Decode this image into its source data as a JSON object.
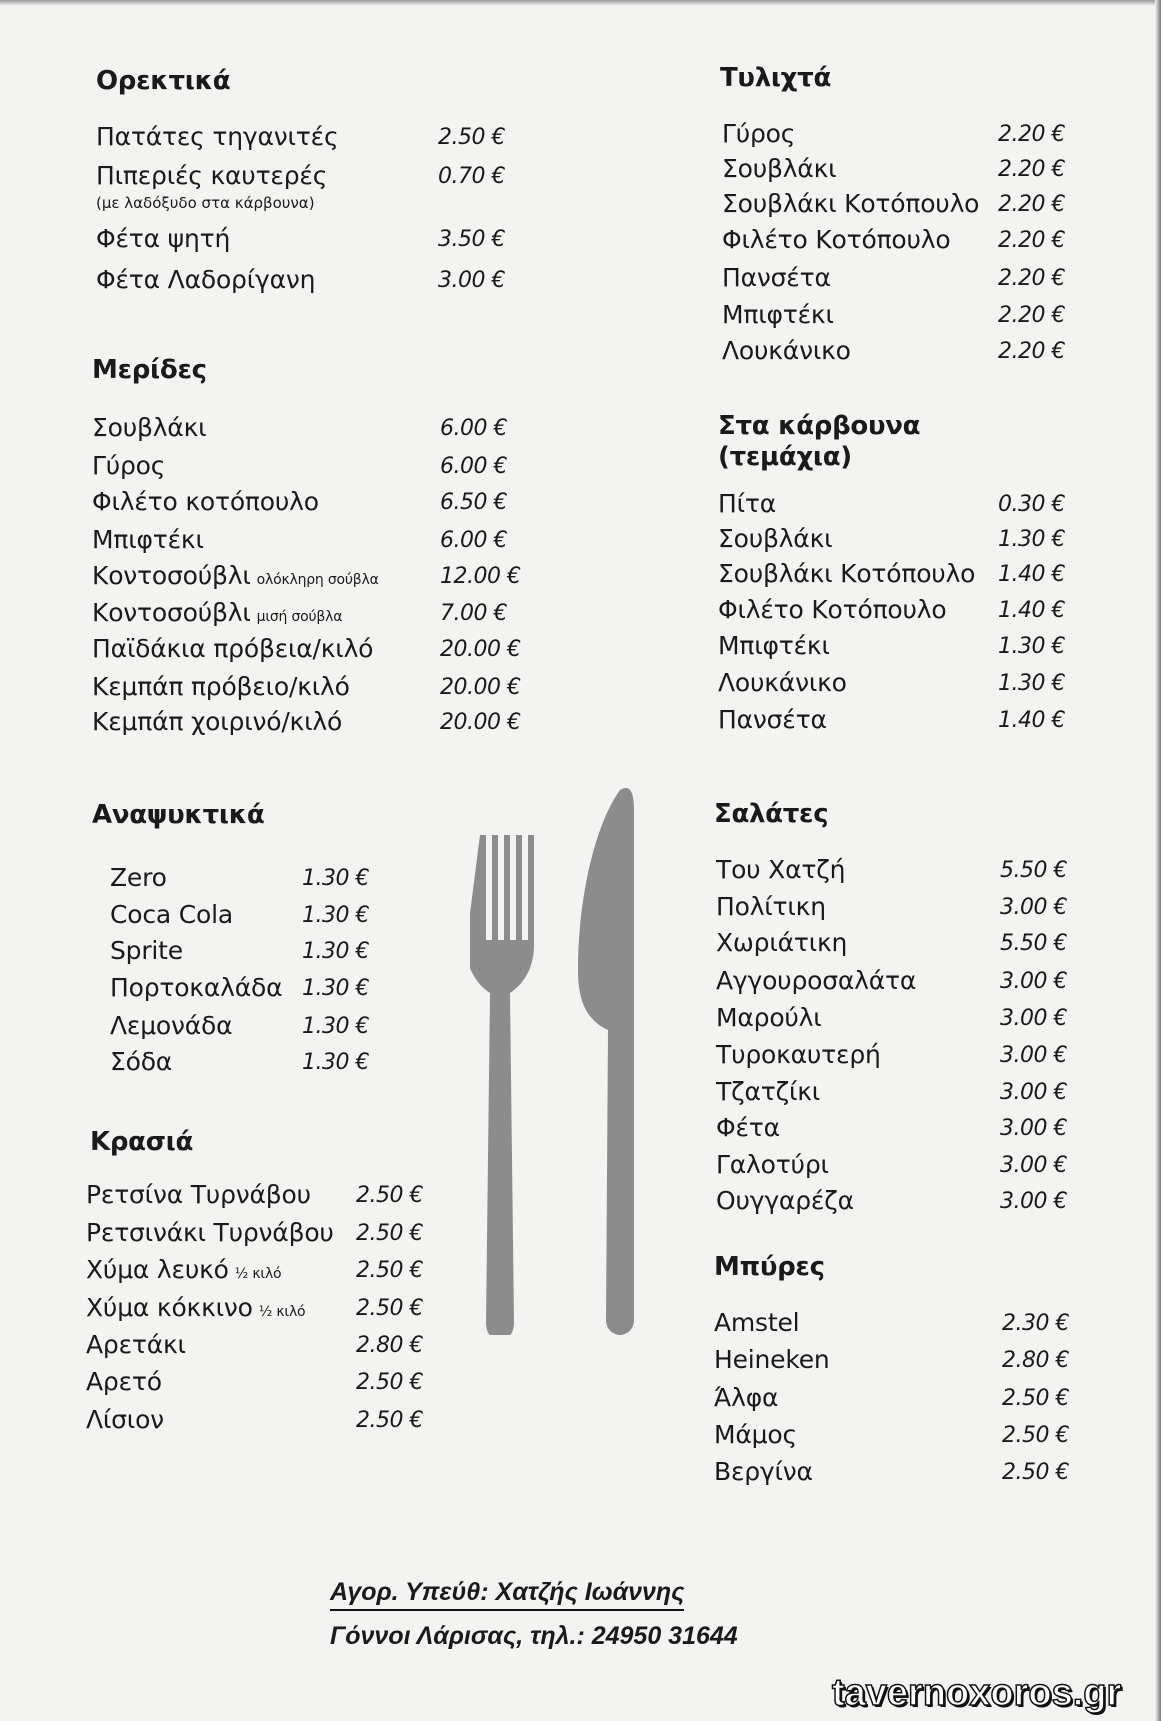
{
  "sections": [
    {
      "id": "orektika",
      "title": "Ορεκτικά",
      "col": "left",
      "items": [
        {
          "name": "Πατάτες τηγανιτές",
          "price": "2.50 €"
        },
        {
          "name": "Πιπεριές καυτερές",
          "sub": "(με λαδόξυδο στα κάρβουνα)",
          "price": "0.70 €"
        },
        {
          "name": "Φέτα ψητή",
          "price": "3.50 €"
        },
        {
          "name": "Φέτα Λαδορίγανη",
          "price": "3.00 €"
        }
      ]
    },
    {
      "id": "merides",
      "title": "Μερίδες",
      "col": "left",
      "items": [
        {
          "name": "Σουβλάκι",
          "price": "6.00 €"
        },
        {
          "name": "Γύρος",
          "price": "6.00 €"
        },
        {
          "name": "Φιλέτο κοτόπουλο",
          "price": "6.50 €"
        },
        {
          "name": "Μπιφτέκι",
          "price": "6.00 €"
        },
        {
          "name": "Κοντοσούβλι",
          "note": "ολόκληρη σούβλα",
          "price": "12.00 €"
        },
        {
          "name": "Κοντοσούβλι",
          "note": "μισή σούβλα",
          "price": "7.00 €"
        },
        {
          "name": "Παϊδάκια πρόβεια/κιλό",
          "price": "20.00 €"
        },
        {
          "name": "Κεμπάπ πρόβειο/κιλό",
          "price": "20.00 €"
        },
        {
          "name": "Κεμπάπ χοιρινό/κιλό",
          "price": "20.00 €"
        }
      ]
    },
    {
      "id": "anapsyktika",
      "title": "Αναψυκτικά",
      "col": "left",
      "items": [
        {
          "name": "Zero",
          "price": "1.30 €"
        },
        {
          "name": "Coca Cola",
          "price": "1.30 €"
        },
        {
          "name": "Sprite",
          "price": "1.30 €"
        },
        {
          "name": "Πορτοκαλάδα",
          "price": "1.30 €"
        },
        {
          "name": "Λεμονάδα",
          "price": "1.30 €"
        },
        {
          "name": "Σόδα",
          "price": "1.30 €"
        }
      ]
    },
    {
      "id": "krasia",
      "title": "Κρασιά",
      "col": "left",
      "items": [
        {
          "name": "Ρετσίνα Τυρνάβου",
          "price": "2.50 €"
        },
        {
          "name": "Ρετσινάκι Τυρνάβου",
          "price": "2.50 €"
        },
        {
          "name": "Χύμα λευκό",
          "note": "½ κιλό",
          "price": "2.50 €"
        },
        {
          "name": "Χύμα κόκκινο",
          "note": "½ κιλό",
          "price": "2.50 €"
        },
        {
          "name": "Αρετάκι",
          "price": "2.80 €"
        },
        {
          "name": "Αρετό",
          "price": "2.50 €"
        },
        {
          "name": "Λίσιον",
          "price": "2.50 €"
        }
      ]
    },
    {
      "id": "tylixta",
      "title": "Τυλιχτά",
      "col": "right",
      "items": [
        {
          "name": "Γύρος",
          "price": "2.20 €"
        },
        {
          "name": "Σουβλάκι",
          "price": "2.20 €"
        },
        {
          "name": "Σουβλάκι Κοτόπουλο",
          "price": "2.20 €"
        },
        {
          "name": "Φιλέτο Κοτόπουλο",
          "price": "2.20 €"
        },
        {
          "name": "Πανσέτα",
          "price": "2.20 €"
        },
        {
          "name": "Μπιφτέκι",
          "price": "2.20 €"
        },
        {
          "name": "Λουκάνικο",
          "price": "2.20 €"
        }
      ]
    },
    {
      "id": "karvouna",
      "title": "Στα κάρβουνα",
      "title2": "(τεμάχια)",
      "col": "right",
      "items": [
        {
          "name": "Πίτα",
          "price": "0.30 €"
        },
        {
          "name": "Σουβλάκι",
          "price": "1.30 €"
        },
        {
          "name": "Σουβλάκι Κοτόπουλο",
          "price": "1.40 €"
        },
        {
          "name": "Φιλέτο Κοτόπουλο",
          "price": "1.40 €"
        },
        {
          "name": "Μπιφτέκι",
          "price": "1.30 €"
        },
        {
          "name": "Λουκάνικο",
          "price": "1.30 €"
        },
        {
          "name": "Πανσέτα",
          "price": "1.40 €"
        }
      ]
    },
    {
      "id": "salates",
      "title": "Σαλάτες",
      "col": "right",
      "items": [
        {
          "name": "Του Χατζή",
          "price": "5.50 €"
        },
        {
          "name": "Πολίτικη",
          "price": "3.00 €"
        },
        {
          "name": "Χωριάτικη",
          "price": "5.50 €"
        },
        {
          "name": "Αγγουροσαλάτα",
          "price": "3.00 €"
        },
        {
          "name": "Μαρούλι",
          "price": "3.00 €"
        },
        {
          "name": "Τυροκαυτερή",
          "price": "3.00 €"
        },
        {
          "name": "Τζατζίκι",
          "price": "3.00 €"
        },
        {
          "name": "Φέτα",
          "price": "3.00 €"
        },
        {
          "name": "Γαλοτύρι",
          "price": "3.00 €"
        },
        {
          "name": "Ουγγαρέζα",
          "price": "3.00 €"
        }
      ]
    },
    {
      "id": "bires",
      "title": "Μπύρες",
      "col": "right",
      "items": [
        {
          "name": "Amstel",
          "price": "2.30 €"
        },
        {
          "name": "Heineken",
          "price": "2.80 €"
        },
        {
          "name": "Άλφα",
          "price": "2.50 €"
        },
        {
          "name": "Μάμος",
          "price": "2.50 €"
        },
        {
          "name": "Βεργίνα",
          "price": "2.50 €"
        }
      ]
    }
  ],
  "footer": {
    "line1": "Αγορ. Υπεύθ:    Χατζής Ιωάννης",
    "line2": "Γόννοι Λάρισας, τηλ.: 24950 31644"
  },
  "watermark": "tavernoxoros.gr",
  "decoration": {
    "icon": "fork-and-knife-icon",
    "color": "#8c8c8c"
  }
}
